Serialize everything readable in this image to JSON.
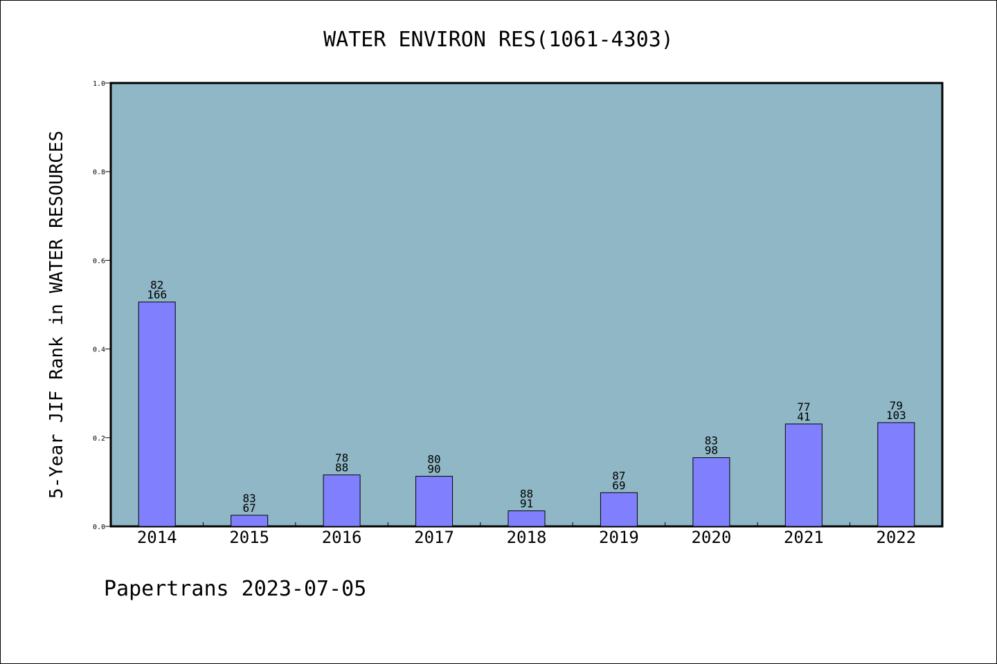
{
  "chart_data": {
    "type": "bar",
    "title": "WATER ENVIRON RES(1061-4303)",
    "ylabel": "5-Year JIF Rank in WATER RESOURCES",
    "xlabel": "",
    "ylim": [
      0,
      1.0
    ],
    "yticks": [
      "0.0",
      "0.2",
      "0.4",
      "0.6",
      "0.8",
      "1.0"
    ],
    "categories": [
      "2014",
      "2015",
      "2016",
      "2017",
      "2018",
      "2019",
      "2020",
      "2021",
      "2022"
    ],
    "values": [
      0.506,
      0.025,
      0.116,
      0.113,
      0.035,
      0.076,
      0.155,
      0.231,
      0.234
    ],
    "labels_top": [
      "82",
      "83",
      "78",
      "80",
      "88",
      "87",
      "83",
      "77",
      "79"
    ],
    "labels_bottom": [
      "166",
      "67",
      "88",
      "90",
      "91",
      "69",
      "98",
      "41",
      "103"
    ],
    "grid": false,
    "colors": {
      "plot_background": "#8fb7c6",
      "bar_fill": "#8080ff",
      "bar_stroke": "#000000"
    }
  },
  "footer": {
    "text": "Papertrans 2023-07-05"
  }
}
